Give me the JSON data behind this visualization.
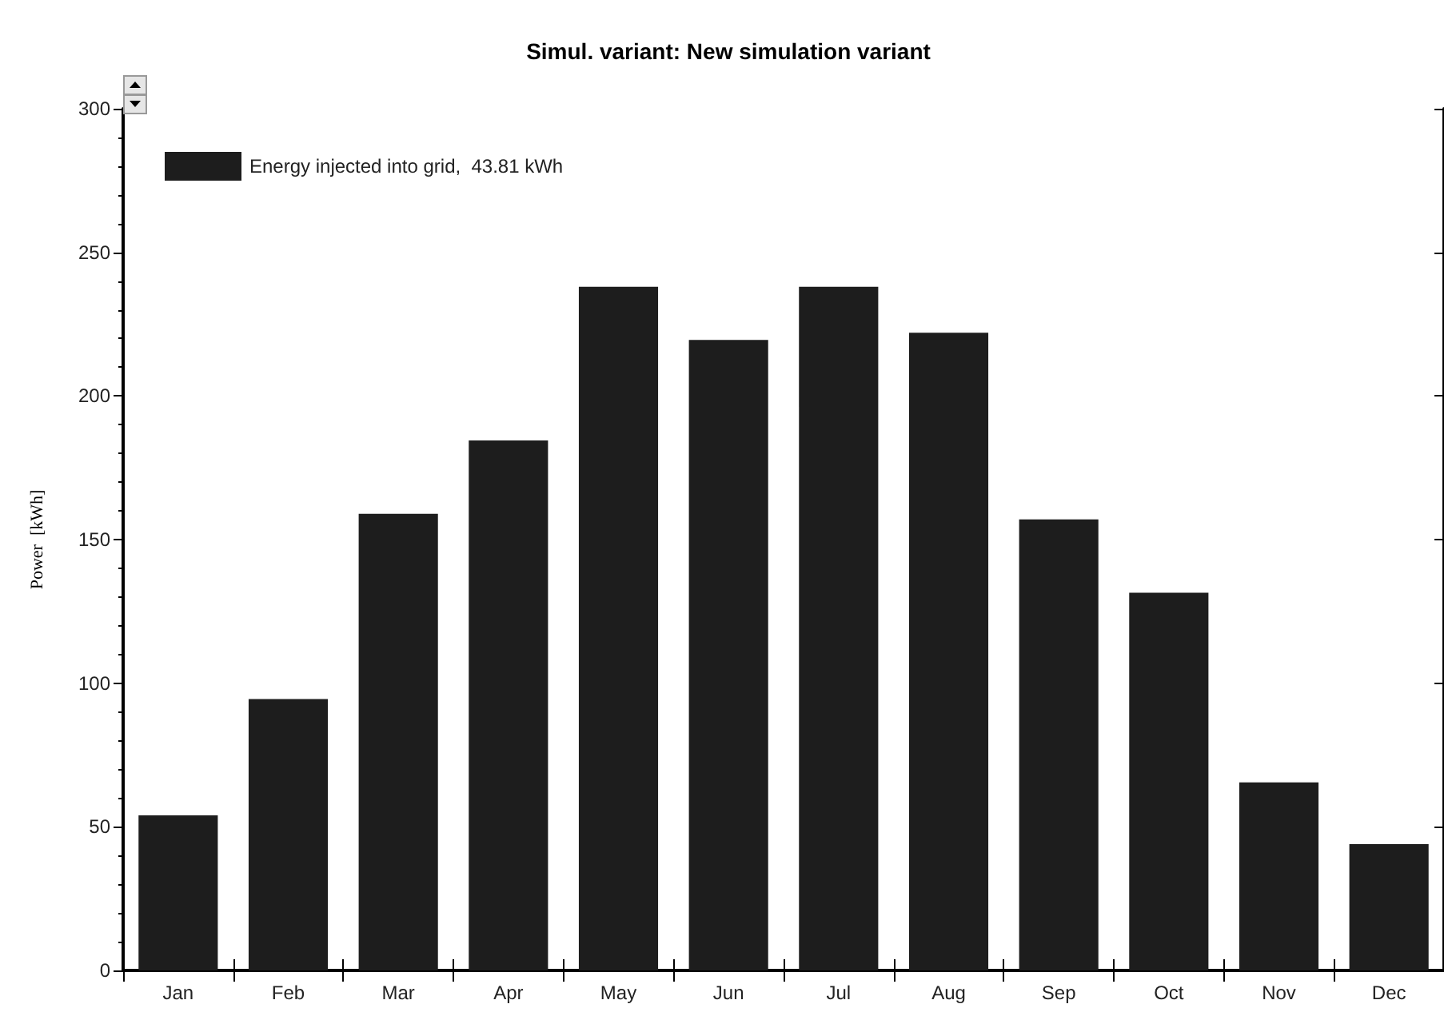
{
  "chart_data": {
    "type": "bar",
    "title": "Simul. variant: New simulation variant",
    "ylabel": "Power  [kWh]",
    "categories": [
      "Jan",
      "Feb",
      "Mar",
      "Apr",
      "May",
      "Jun",
      "Jul",
      "Aug",
      "Sep",
      "Oct",
      "Nov",
      "Dec"
    ],
    "series": [
      {
        "name": "Energy injected into grid,  43.81 kWh",
        "color": "#1d1d1d",
        "values": [
          54,
          94.5,
          159,
          184.5,
          238,
          219.5,
          238,
          222,
          157,
          131.5,
          65.5,
          44
        ]
      }
    ],
    "ylim": [
      0,
      300
    ],
    "yticks": [
      0,
      50,
      100,
      150,
      200,
      250,
      300
    ],
    "grid": false,
    "legend": "top left"
  }
}
